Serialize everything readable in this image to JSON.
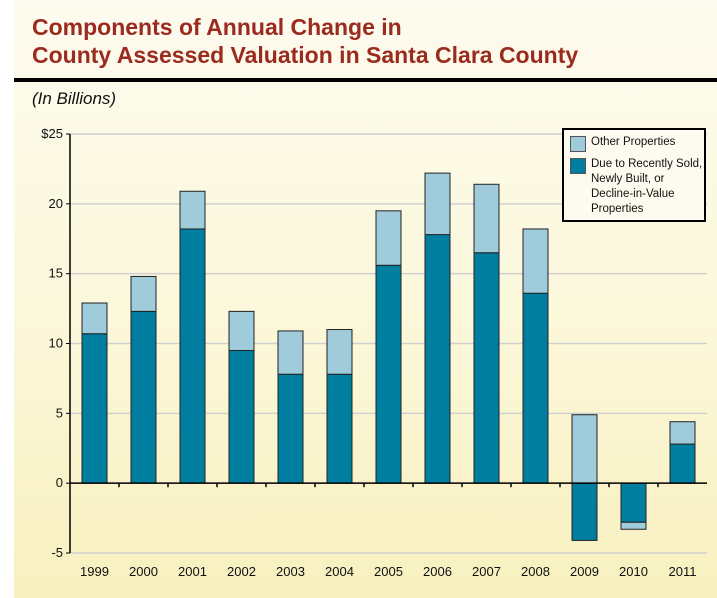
{
  "title_line1": "Components of Annual Change in",
  "title_line2": "County Assessed Valuation in Santa Clara County",
  "units": "(In Billions)",
  "colors": {
    "dark": "#007ea0",
    "light": "#9fcbdb",
    "grid": "#cfd0cf"
  },
  "chart_data": {
    "type": "bar",
    "stacked": true,
    "title": "Components of Annual Change in County Assessed Valuation in Santa Clara County",
    "ylabel": "(In Billions)",
    "xlabel": "",
    "ylim": [
      -5,
      25
    ],
    "yticks": [
      25,
      20,
      15,
      10,
      5,
      0,
      -5
    ],
    "ytick_labels": [
      "$25",
      "20",
      "15",
      "10",
      "5",
      "0",
      "-5"
    ],
    "grid": true,
    "legend_position": "top-right",
    "categories": [
      "1999",
      "2000",
      "2001",
      "2002",
      "2003",
      "2004",
      "2005",
      "2006",
      "2007",
      "2008",
      "2009",
      "2010",
      "2011"
    ],
    "series": [
      {
        "name": "Due to Recently Sold, Newly Built, or Decline-in-Value Properties",
        "color": "#007ea0",
        "values": [
          10.7,
          12.3,
          18.2,
          9.5,
          7.8,
          7.8,
          15.6,
          17.8,
          16.5,
          13.6,
          -4.1,
          -2.8,
          2.8
        ]
      },
      {
        "name": "Other Properties",
        "color": "#9fcbdb",
        "values": [
          2.2,
          2.5,
          2.7,
          2.8,
          3.1,
          3.2,
          3.9,
          4.4,
          4.9,
          4.6,
          4.9,
          -0.5,
          1.6
        ]
      }
    ]
  },
  "legend": {
    "other": "Other Properties",
    "due": "Due to Recently Sold, Newly Built, or Decline-in-Value Properties"
  }
}
